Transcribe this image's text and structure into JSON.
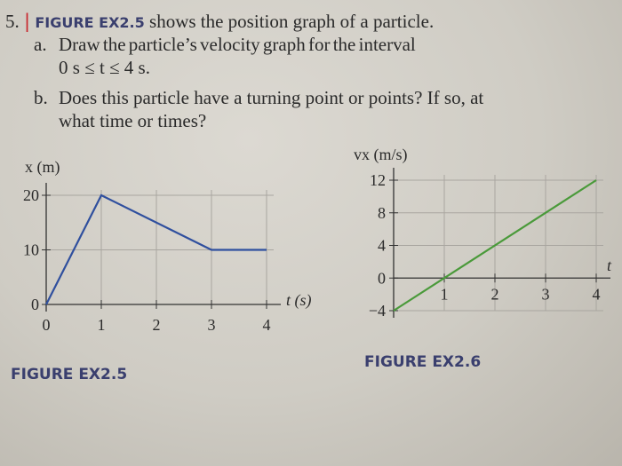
{
  "problem": {
    "number": "5.",
    "difficulty_mark": "|",
    "figure_ref": "FIGURE EX2.5",
    "intro": "shows the position graph of a particle.",
    "part_a_label": "a.",
    "part_a_line1": "Draw   the   particle’s   velocity   graph   for   the   interval",
    "part_a_line2": "0 s ≤ t ≤ 4 s.",
    "part_b_label": "b.",
    "part_b_line1": "Does this particle have a turning point or points? If so, at",
    "part_b_line2": "what time or times?"
  },
  "chart_data": [
    {
      "type": "line",
      "caption": "FIGURE EX2.5",
      "xlabel": "t (s)",
      "ylabel": "x (m)",
      "xlim": [
        0,
        4
      ],
      "ylim": [
        0,
        20
      ],
      "xticks": [
        "0",
        "1",
        "2",
        "3",
        "4"
      ],
      "yticks": [
        "0",
        "10",
        "20"
      ],
      "grid": true,
      "line_color": "#2f4f9e",
      "series": [
        {
          "x": [
            0,
            1,
            3,
            4
          ],
          "y": [
            0,
            20,
            10,
            10
          ]
        }
      ]
    },
    {
      "type": "line",
      "caption": "FIGURE EX2.6",
      "xlabel": "t",
      "ylabel": "vx (m/s)",
      "xlim": [
        0,
        4
      ],
      "ylim": [
        -4,
        12
      ],
      "xticks": [
        "1",
        "2",
        "3",
        "4"
      ],
      "yticks": [
        "−4",
        "0",
        "4",
        "8",
        "12"
      ],
      "grid": true,
      "line_color": "#4a9a3a",
      "series": [
        {
          "x": [
            0,
            4
          ],
          "y": [
            -4,
            12
          ]
        }
      ]
    }
  ]
}
